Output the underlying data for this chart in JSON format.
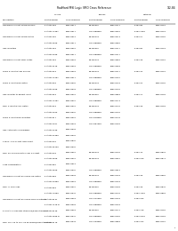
{
  "title": "RadHard MSI Logic SMD Cross Reference",
  "page": "1/2-84",
  "col_headers_row1": [
    "Description",
    "LF mil",
    "",
    "Barnes",
    "",
    "National",
    ""
  ],
  "col_headers_row2": [
    "",
    "Part Number",
    "SMD Number",
    "Part Number",
    "SMD Number",
    "Part Number",
    "SMD Number"
  ],
  "rows": [
    [
      "Quadruple 2-Input NAND Drivers",
      "5 State 388",
      "5962-8611",
      "CD190BSS",
      "5962-8711",
      "5454 88",
      "5962-8751"
    ],
    [
      "",
      "5 State 7088A",
      "5962-8611",
      "CD 1988888",
      "5962-8637",
      "5454 7088",
      "5962-8769"
    ],
    [
      "Quadruple 2-Input NAND Gates",
      "5 State 362",
      "5962-8614",
      "CD190DSS",
      "5962-8373",
      "5464 XC",
      "5962-8752"
    ],
    [
      "",
      "5 State 3628",
      "5962-8611",
      "CD 1988888",
      "5962-8582",
      "",
      ""
    ],
    [
      "Hex Inverters",
      "5 State 384",
      "5962-8615",
      "CD190BSS",
      "5962-8717",
      "5454 86",
      "5962-8769"
    ],
    [
      "",
      "5 State 3048",
      "5962-8617",
      "CD 1988888",
      "5962-8717",
      "",
      ""
    ],
    [
      "Quadruple 2-Input NOR Gates",
      "5 State 389",
      "5962-8618",
      "CD190DSS",
      "5962-8896",
      "5464 X8",
      "5962-8751"
    ],
    [
      "",
      "5 State 3128",
      "5962-8618",
      "CD 1988888",
      "5962-8698",
      "",
      ""
    ],
    [
      "Triple 3-Input NAND Drivers",
      "5 State 828",
      "5962-8618",
      "CD190DSS",
      "5962-8717",
      "5454 18",
      "5962-8761"
    ],
    [
      "",
      "5 State 1058A",
      "5962-8611",
      "CD 1988888",
      "5962-8767",
      "",
      ""
    ],
    [
      "Triple 3-Input NOR Gates",
      "5 State 823",
      "5962-8622",
      "CD190DSS",
      "5962-8728",
      "5464 23",
      "5962-8762"
    ],
    [
      "",
      "5 State 3228",
      "5962-8633",
      "CD 1988888",
      "5962-8731",
      "",
      ""
    ],
    [
      "Hex Inverter to Ballast Input",
      "5 State 818",
      "5962-8626",
      "CD190BSS",
      "5962-8889",
      "5454 14",
      "5962-8764"
    ],
    [
      "",
      "5 State 7058A",
      "5962-8627",
      "CD 1988888",
      "5962-8773",
      "",
      ""
    ],
    [
      "Dual 4-Input NAND Gates",
      "5 State 828",
      "5962-8626",
      "CD190DSS",
      "5962-8775",
      "5464 X8",
      "5962-8753"
    ],
    [
      "",
      "5 State 3026",
      "5962-8637",
      "CD 1988888",
      "5962-8731",
      "",
      ""
    ],
    [
      "Triple 3-Input NOR Inverters",
      "5 State 817",
      "5962-8626",
      "CD 1978888",
      "5962-8749",
      "",
      ""
    ],
    [
      "",
      "5 State 3027",
      "5962-8628",
      "CD 1857888",
      "5962-8754",
      "",
      ""
    ],
    [
      "Hex Automatic ring Buffers",
      "5 State 3098",
      "5962-8638",
      "",
      "",
      "",
      ""
    ],
    [
      "",
      "5 State 3098a",
      "5962-8631",
      "",
      "",
      "",
      ""
    ],
    [
      "4-Mux, And-Or-Not-AND Invert",
      "5 State 876",
      "5962-8837",
      "",
      "",
      "",
      ""
    ],
    [
      "",
      "5 State 3506a",
      "5962-8631",
      "",
      "",
      "",
      ""
    ],
    [
      "Dual D-Flip Flops with Clear & Preset",
      "5 State 878",
      "5962-8615",
      "CD190DSS",
      "5962-8732",
      "5464 78",
      "5962-8824"
    ],
    [
      "",
      "5 State 3528",
      "5962-8621",
      "CD190DSS",
      "5962-8310",
      "5464 378",
      "5962-8874"
    ],
    [
      "4-Bit Comparators",
      "5 State 887",
      "5962-8514",
      "",
      "",
      "",
      ""
    ],
    [
      "",
      "5 State 3858",
      "5962-8637",
      "CD 1988888",
      "5962-8914",
      "",
      ""
    ],
    [
      "Quadruple 2-Input Exclusive OR Gates",
      "5 State 888",
      "5962-8638",
      "CD190DSS",
      "5962-8718",
      "5454 X8",
      "5962-8986"
    ],
    [
      "",
      "5 State 3388a",
      "5962-8619",
      "CD 1988888",
      "5962-8718",
      "",
      ""
    ],
    [
      "Dual JK Flip-Flops",
      "5 State 889",
      "5962-8627",
      "CD190BSS",
      "5962-8764",
      "5454 X8",
      "5962-8875"
    ],
    [
      "",
      "5 State 7318a",
      "5962-8641",
      "CD 1988888",
      "5962-8776",
      "5454 7318",
      "5962-8854"
    ],
    [
      "Quadruple 2-Input Exclusive NOR 8-Outputs",
      "5 State 8131",
      "5962-8618",
      "CD 1212888",
      "5962-8718",
      "5464 316",
      ""
    ],
    [
      "",
      "5 State 7128 D",
      "5962-8623",
      "CD 1988888",
      "5962-8718",
      "",
      ""
    ],
    [
      "5-Line to 4-Line Bus Standard/Demultiplexers",
      "5 State 8138",
      "5962-8668",
      "CD190BSS",
      "5962-8777",
      "5464 118",
      "5962-8752"
    ],
    [
      "",
      "5 State 4888 D",
      "5962-8640",
      "CD 1988888",
      "5962-8786",
      "5454 3118",
      "5962-8754"
    ],
    [
      "Dual 16-Line to 16-Line Encoders/Demultiplexers",
      "5 State 8178",
      "5962-8648",
      "CD 1209888",
      "5962-8883",
      "5464 124",
      "5962-8757"
    ]
  ],
  "bg_color": "#ffffff",
  "text_color": "#000000",
  "font_size": 1.6,
  "header_font_size": 1.7,
  "title_font_size": 2.2
}
